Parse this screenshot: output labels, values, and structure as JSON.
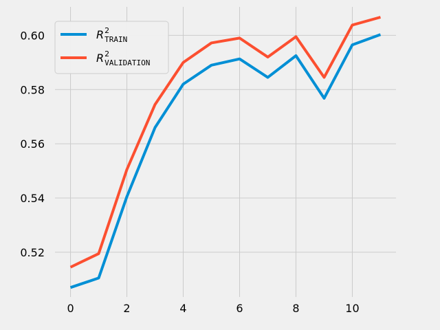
{
  "chart_data": {
    "type": "line",
    "x": [
      0,
      1,
      2,
      3,
      4,
      5,
      6,
      7,
      8,
      9,
      10,
      11
    ],
    "series": [
      {
        "name": "R2_TRAIN",
        "legend": {
          "base": "R",
          "sup": "2",
          "sub": "TRAIN"
        },
        "color": "#008fd5",
        "values": [
          0.507,
          0.5105,
          0.5405,
          0.566,
          0.582,
          0.589,
          0.5913,
          0.5845,
          0.5925,
          0.5768,
          0.5965,
          0.6003
        ]
      },
      {
        "name": "R2_VALIDATION",
        "legend": {
          "base": "R",
          "sup": "2",
          "sub": "VALIDATION"
        },
        "color": "#fc4f30",
        "values": [
          0.5145,
          0.5195,
          0.5505,
          0.5745,
          0.59,
          0.5972,
          0.599,
          0.592,
          0.5995,
          0.5845,
          0.6038,
          0.6067
        ]
      }
    ],
    "xticks": [
      0,
      2,
      4,
      6,
      8,
      10
    ],
    "xtick_labels": [
      "0",
      "2",
      "4",
      "6",
      "8",
      "10"
    ],
    "yticks": [
      0.52,
      0.54,
      0.56,
      0.58,
      0.6
    ],
    "ytick_labels": [
      "0.52",
      "0.54",
      "0.56",
      "0.58",
      "0.60"
    ],
    "xlim": [
      -0.55,
      11.55
    ],
    "ylim": [
      0.5035,
      0.6105
    ],
    "grid": true,
    "legend_position": "top-left",
    "title": "",
    "xlabel": "",
    "ylabel": ""
  }
}
